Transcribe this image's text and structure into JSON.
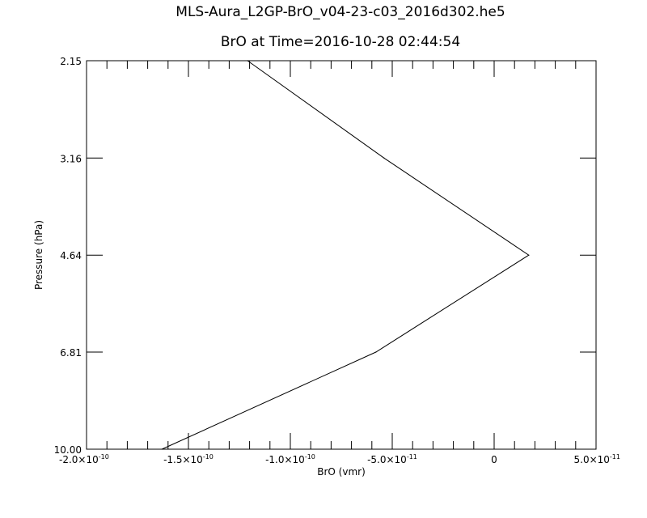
{
  "chart_data": {
    "type": "line",
    "title": "MLS-Aura_L2GP-BrO_v04-23-c03_2016d302.he5",
    "subtitle": "BrO at Time=2016-10-28 02:44:54",
    "xlabel": "BrO (vmr)",
    "ylabel": "Pressure (hPa)",
    "xlim": [
      -2e-10,
      5e-11
    ],
    "ylim": [
      10.0,
      2.15
    ],
    "y_scale": "log",
    "grid": false,
    "x_ticks": [
      {
        "value": -2e-10,
        "mantissa": "-2.0",
        "exp": "-10"
      },
      {
        "value": -1.5e-10,
        "mantissa": "-1.5",
        "exp": "-10"
      },
      {
        "value": -1e-10,
        "mantissa": "-1.0",
        "exp": "-10"
      },
      {
        "value": -5e-11,
        "mantissa": "-5.0",
        "exp": "-11"
      },
      {
        "value": 0,
        "mantissa": "0",
        "exp": ""
      },
      {
        "value": 5e-11,
        "mantissa": "5.0",
        "exp": "-11"
      }
    ],
    "y_ticks": [
      {
        "value": 2.15,
        "label": "2.15"
      },
      {
        "value": 3.16,
        "label": "3.16"
      },
      {
        "value": 4.64,
        "label": "4.64"
      },
      {
        "value": 6.81,
        "label": "6.81"
      },
      {
        "value": 10.0,
        "label": "10.00"
      }
    ],
    "series": [
      {
        "color": "#000000",
        "x": [
          -1.63e-10,
          -5.8e-11,
          1.7e-11,
          -5.4e-11,
          -1.21e-10
        ],
        "y": [
          10.0,
          6.81,
          4.64,
          3.16,
          2.15
        ]
      }
    ]
  }
}
